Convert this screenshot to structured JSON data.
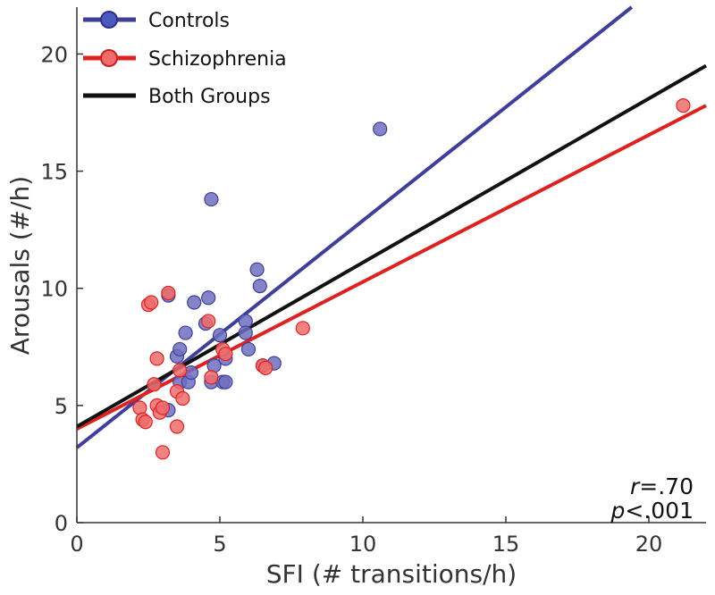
{
  "chart_data": {
    "type": "scatter",
    "title": "",
    "xlabel": "SFI (# transitions/h)",
    "ylabel": "Arousals (#/h)",
    "xlim": [
      0,
      22
    ],
    "ylim": [
      0,
      22
    ],
    "xticks": [
      0,
      5,
      10,
      15,
      20
    ],
    "yticks": [
      0,
      5,
      10,
      15,
      20
    ],
    "grid": false,
    "legend_position": "top-left",
    "series": [
      {
        "name": "Controls",
        "color": "#3f3f9a",
        "fill": "#6f6fbf",
        "points": [
          [
            3.2,
            4.8
          ],
          [
            3.2,
            9.7
          ],
          [
            3.5,
            7.1
          ],
          [
            3.6,
            7.4
          ],
          [
            3.6,
            6.0
          ],
          [
            3.8,
            8.1
          ],
          [
            3.9,
            6.0
          ],
          [
            4.0,
            6.4
          ],
          [
            4.1,
            9.4
          ],
          [
            4.5,
            8.5
          ],
          [
            4.6,
            9.6
          ],
          [
            4.7,
            13.8
          ],
          [
            4.7,
            6.0
          ],
          [
            4.8,
            6.7
          ],
          [
            5.0,
            8.0
          ],
          [
            5.1,
            6.0
          ],
          [
            5.2,
            7.0
          ],
          [
            5.2,
            6.0
          ],
          [
            5.9,
            8.6
          ],
          [
            5.9,
            8.1
          ],
          [
            6.0,
            7.4
          ],
          [
            6.3,
            10.8
          ],
          [
            6.4,
            10.1
          ],
          [
            6.5,
            6.7
          ],
          [
            6.9,
            6.8
          ],
          [
            10.6,
            16.8
          ]
        ],
        "fit": [
          [
            0,
            3.2
          ],
          [
            19.4,
            22.0
          ]
        ]
      },
      {
        "name": "Schizophrenia",
        "color": "#dd2222",
        "fill": "#ee6c6c",
        "points": [
          [
            2.2,
            4.9
          ],
          [
            2.3,
            4.4
          ],
          [
            2.4,
            4.3
          ],
          [
            2.5,
            9.3
          ],
          [
            2.6,
            9.4
          ],
          [
            2.7,
            5.9
          ],
          [
            2.8,
            7.0
          ],
          [
            2.8,
            5.0
          ],
          [
            2.9,
            4.7
          ],
          [
            3.0,
            4.9
          ],
          [
            3.0,
            3.0
          ],
          [
            3.2,
            9.8
          ],
          [
            3.5,
            4.1
          ],
          [
            3.5,
            5.6
          ],
          [
            3.6,
            6.5
          ],
          [
            3.7,
            5.3
          ],
          [
            4.6,
            8.6
          ],
          [
            4.7,
            6.2
          ],
          [
            5.1,
            7.4
          ],
          [
            5.2,
            7.2
          ],
          [
            6.5,
            6.7
          ],
          [
            6.6,
            6.6
          ],
          [
            7.9,
            8.3
          ],
          [
            21.2,
            17.8
          ]
        ],
        "fit": [
          [
            0,
            4.0
          ],
          [
            22,
            17.8
          ]
        ]
      },
      {
        "name": "Both Groups",
        "color": "#111111",
        "points": [],
        "fit": [
          [
            0,
            4.1
          ],
          [
            22,
            19.5
          ]
        ]
      }
    ],
    "annotations": {
      "r_symbol": "r",
      "r_value": "=.70",
      "p_symbol": "p",
      "p_value": "<.001"
    }
  }
}
